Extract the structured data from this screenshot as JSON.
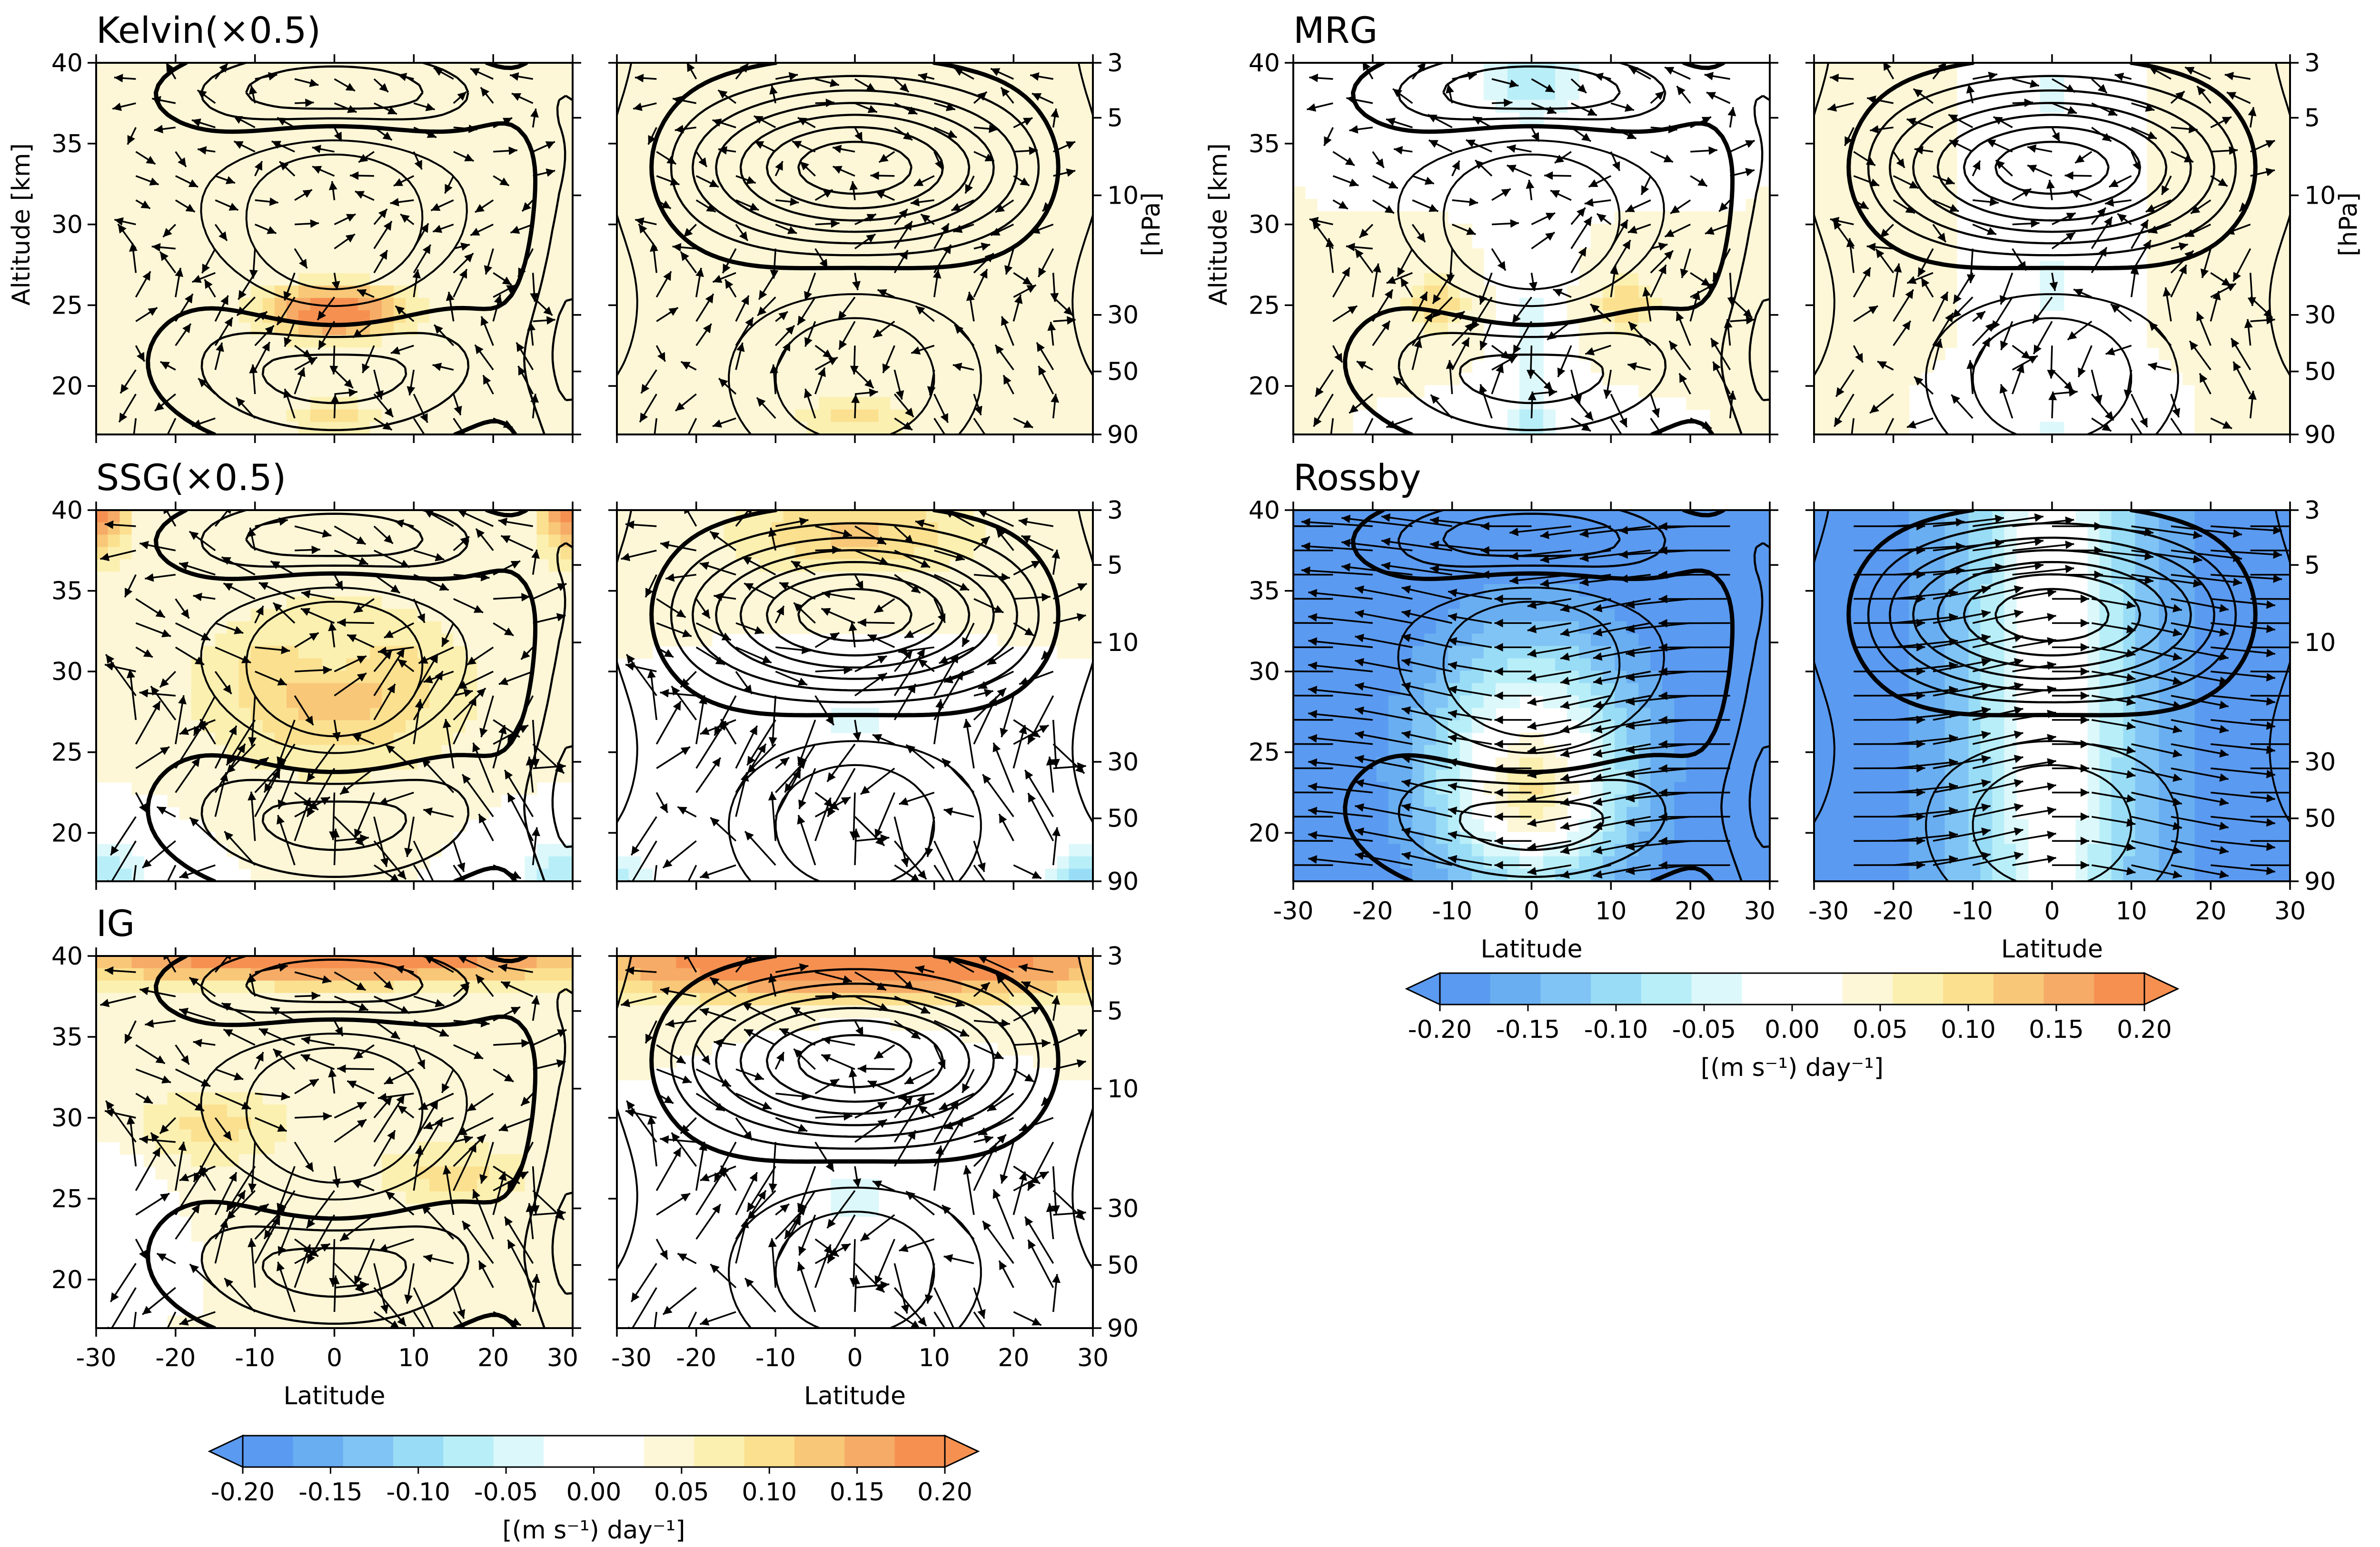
{
  "figure": {
    "panels": [
      {
        "id": "kelvin",
        "title": "Kelvin(×0.5)",
        "wind": "neutral",
        "wave": 1,
        "vec": 0.35,
        "pos": "r0c0"
      },
      {
        "id": "mrg",
        "title": "MRG",
        "wind": "neutral",
        "wave": 0,
        "vec": 0.45,
        "pos": "r0c1"
      },
      {
        "id": "ssg",
        "title": "SSG(×0.5)",
        "wind": "warm",
        "wave": 0,
        "vec": 0.8,
        "pos": "r1c0"
      },
      {
        "id": "rossby",
        "title": "Rossby",
        "wind": "cool",
        "wave": 0,
        "vec": 1.0,
        "pos": "r1c1"
      },
      {
        "id": "ig",
        "title": "IG",
        "wind": "warm",
        "wave": 0,
        "vec": 0.8,
        "pos": "r2c0"
      }
    ],
    "axes": {
      "xlabel": "Latitude",
      "ylabel_left": "Altitude [km]",
      "ylabel_right": "[hPa]",
      "x_ticks": [
        "-30",
        "-20",
        "-10",
        "0",
        "10",
        "20",
        "30"
      ],
      "y_ticks_km": [
        "20",
        "25",
        "30",
        "35",
        "40"
      ],
      "p_ticks_hpa": [
        "3",
        "5",
        "10",
        "30",
        "50",
        "90"
      ]
    },
    "colorbar": {
      "label": "[(m s⁻¹) day⁻¹]",
      "ticks": [
        "-0.20",
        "-0.15",
        "-0.10",
        "-0.05",
        "0.00",
        "0.05",
        "0.10",
        "0.15",
        "0.20"
      ],
      "colors": [
        "#5a9af0",
        "#6aaef2",
        "#7fc4f4",
        "#98dcf6",
        "#b8eef8",
        "#dcf8fb",
        "#ffffff",
        "#ffffff",
        "#fdf7d8",
        "#fcf0b0",
        "#fbe090",
        "#f8c878",
        "#f6ac66",
        "#f59050"
      ]
    },
    "colors": {
      "negative_fill": "#5a9af0",
      "positive_fill": "#f59050",
      "contour": "#000000"
    }
  },
  "chart_data": {
    "type": "contour",
    "x_range": [
      -30,
      30
    ],
    "y_range_km": [
      17,
      40
    ],
    "pressure_levels_hpa": [
      3,
      5,
      10,
      30,
      50,
      90
    ],
    "colorbar_range": [
      -0.2,
      0.2
    ],
    "colorbar_step": 0.025,
    "panel_titles": [
      "Kelvin(×0.5)",
      "MRG",
      "SSG(×0.5)",
      "Rossby",
      "IG"
    ]
  }
}
